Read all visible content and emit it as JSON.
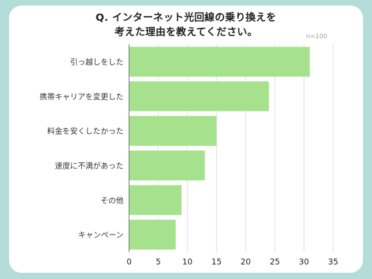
{
  "chart_data": {
    "type": "bar",
    "orientation": "horizontal",
    "title": [
      "Q. インターネット光回線の乗り換えを",
      "考えた理由を教えてください。"
    ],
    "note": "n=100",
    "categories": [
      "引っ越しをした",
      "携帯キャリアを変更した",
      "料金を安くしたかった",
      "速度に不満があった",
      "その他",
      "キャンペーン"
    ],
    "values": [
      31,
      24,
      15,
      13,
      9,
      8
    ],
    "xlim": [
      0,
      35
    ],
    "xticks": [
      0,
      5,
      10,
      15,
      20,
      25,
      30,
      35
    ],
    "grid": true,
    "legend": "none",
    "colors": {
      "bar": "#a6e28e",
      "grid": "#dddddd",
      "axis": "#666666",
      "background": "#b4dcd8",
      "card": "#ffffff"
    }
  }
}
